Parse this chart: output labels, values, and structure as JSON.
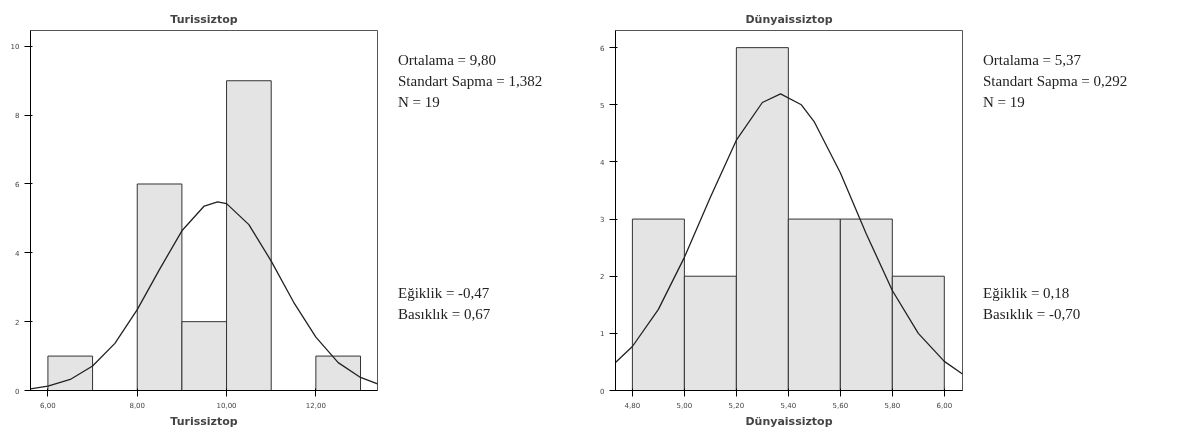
{
  "chart_data": [
    {
      "type": "histogram",
      "title": "Turissiztop",
      "xlabel": "Turissiztop",
      "bins": [
        6,
        7,
        8,
        9,
        10,
        11,
        12,
        13
      ],
      "values": [
        1,
        0,
        6,
        2,
        9,
        0,
        1
      ],
      "color": "#e4e4e4",
      "series": [
        {
          "type": "line",
          "color": "#222222",
          "x": [
            5.61,
            6.0,
            6.5,
            7.0,
            7.5,
            8.0,
            8.5,
            9.0,
            9.5,
            9.8,
            10.0,
            10.5,
            11.0,
            11.5,
            12.0,
            12.5,
            13.0,
            13.38
          ],
          "values": [
            0.05,
            0.13,
            0.32,
            0.71,
            1.37,
            2.35,
            3.52,
            4.64,
            5.36,
            5.48,
            5.43,
            4.82,
            3.76,
            2.57,
            1.55,
            0.81,
            0.38,
            0.19
          ]
        }
      ],
      "xlim": [
        5.61,
        13.38
      ],
      "ylim": [
        0,
        10.46
      ],
      "xticks": [
        {
          "value": 6,
          "label": "6,00"
        },
        {
          "value": 8,
          "label": "8,00"
        },
        {
          "value": 10,
          "label": "10,00"
        },
        {
          "value": 12,
          "label": "12,00"
        }
      ],
      "yticks": [
        0,
        2,
        4,
        6,
        8,
        10
      ],
      "annotations": [
        "Ortalama = 9,80",
        "Standart Sapma = 1,382",
        "N = 19",
        "Eğiklik = -0,47",
        "Basıklık = 0,67"
      ]
    },
    {
      "type": "histogram",
      "title": "Dünyaissiztop",
      "xlabel": "Dünyaissiztop",
      "bins": [
        4.8,
        5.0,
        5.2,
        5.4,
        5.6,
        5.8,
        6.0
      ],
      "values": [
        3,
        2,
        6,
        3,
        3,
        2
      ],
      "color": "#e4e4e4",
      "series": [
        {
          "type": "line",
          "color": "#222222",
          "x": [
            4.735,
            4.8,
            4.9,
            5.0,
            5.1,
            5.2,
            5.3,
            5.37,
            5.45,
            5.5,
            5.6,
            5.7,
            5.8,
            5.9,
            6.0,
            6.07
          ],
          "values": [
            0.49,
            0.77,
            1.42,
            2.33,
            3.38,
            4.38,
            5.04,
            5.19,
            5.0,
            4.7,
            3.81,
            2.74,
            1.75,
            1.0,
            0.51,
            0.29
          ]
        }
      ],
      "xlim": [
        4.735,
        6.07
      ],
      "ylim": [
        0,
        6.3
      ],
      "xticks": [
        {
          "value": 4.8,
          "label": "4,80"
        },
        {
          "value": 5.0,
          "label": "5,00"
        },
        {
          "value": 5.2,
          "label": "5,20"
        },
        {
          "value": 5.4,
          "label": "5,40"
        },
        {
          "value": 5.6,
          "label": "5,60"
        },
        {
          "value": 5.8,
          "label": "5,80"
        },
        {
          "value": 6.0,
          "label": "6,00"
        }
      ],
      "yticks": [
        0,
        1,
        2,
        3,
        4,
        5,
        6
      ],
      "annotations": [
        "Ortalama = 5,37",
        "Standart Sapma = 0,292",
        "N = 19",
        "Eğiklik = 0,18",
        "Basıklık = -0,70"
      ]
    }
  ]
}
